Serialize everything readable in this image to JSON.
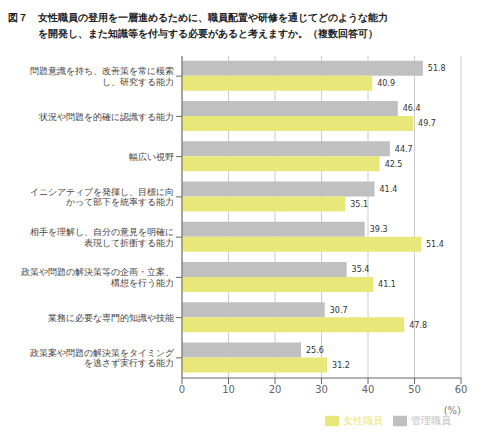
{
  "chart_data": {
    "type": "bar",
    "orientation": "horizontal",
    "title": "図７　女性職員の登用を一層進めるために、職員配置や研修を通じてどのような能力\n　　　を開発し、また知識等を付与する必要があると考えますか。（複数回答可）",
    "categories": [
      "問題意識を持ち、改善策を常に模索\nし、研究する能力",
      "状況や問題を的確に認識する能力",
      "幅広い視野",
      "イニシアティブを発揮し、目標に向\nかって部下を統率する能力",
      "相手を理解し、自分の意見を明確に\n表現して折衝する能力",
      "政策や問題の解決策等の企画・立案、\n構想を行う能力",
      "業務に必要な専門的知識や技能",
      "政策案や問題の解決策をタイミング\nを逃さず実行する能力"
    ],
    "series": [
      {
        "name": "管理職員",
        "color": "#c0c0c0",
        "values": [
          51.8,
          46.4,
          44.7,
          41.4,
          39.3,
          35.4,
          30.7,
          25.6
        ]
      },
      {
        "name": "女性職員",
        "color": "#e8e87a",
        "values": [
          40.9,
          49.7,
          42.5,
          35.1,
          51.4,
          41.1,
          47.8,
          31.2
        ]
      }
    ],
    "x_label": "(%)",
    "xlim": [
      0,
      60
    ],
    "xticks": [
      0,
      10,
      20,
      30,
      40,
      50,
      60
    ],
    "grid": true,
    "legend": "lower right",
    "data_labels": true
  }
}
